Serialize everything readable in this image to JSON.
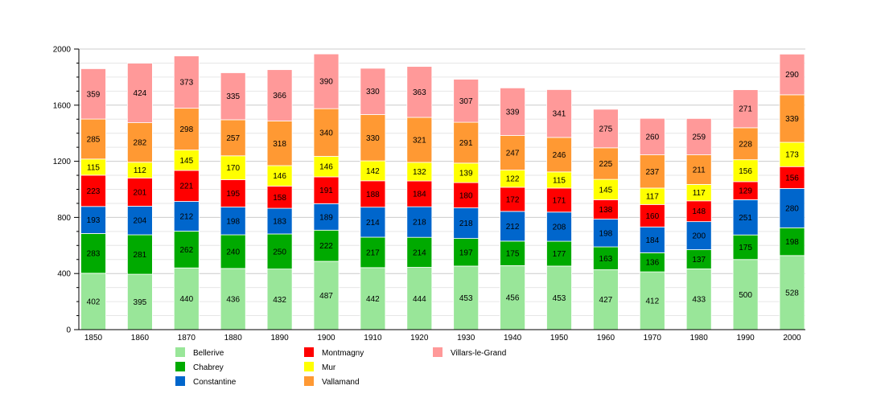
{
  "chart_data": {
    "type": "bar",
    "stacked": true,
    "title": "",
    "xlabel": "",
    "ylabel": "",
    "ylim": [
      0,
      2000
    ],
    "yticks": [
      0,
      400,
      800,
      1200,
      1600,
      2000
    ],
    "grid": true,
    "legend_position": "bottom",
    "categories": [
      "1850",
      "1860",
      "1870",
      "1880",
      "1890",
      "1900",
      "1910",
      "1920",
      "1930",
      "1940",
      "1950",
      "1960",
      "1970",
      "1980",
      "1990",
      "2000"
    ],
    "series": [
      {
        "name": "Bellerive",
        "color": "#99e699",
        "values": [
          402,
          395,
          440,
          436,
          432,
          487,
          442,
          444,
          453,
          456,
          453,
          427,
          412,
          433,
          500,
          528
        ]
      },
      {
        "name": "Chabrey",
        "color": "#00aa00",
        "values": [
          283,
          281,
          262,
          240,
          250,
          222,
          217,
          214,
          197,
          175,
          177,
          163,
          136,
          137,
          175,
          198
        ]
      },
      {
        "name": "Constantine",
        "color": "#0066cc",
        "values": [
          193,
          204,
          212,
          198,
          183,
          189,
          214,
          218,
          218,
          212,
          208,
          198,
          184,
          200,
          251,
          280
        ]
      },
      {
        "name": "Montmagny",
        "color": "#ff0000",
        "values": [
          223,
          201,
          221,
          195,
          158,
          191,
          188,
          184,
          180,
          172,
          171,
          138,
          160,
          148,
          129,
          156
        ]
      },
      {
        "name": "Mur",
        "color": "#ffff00",
        "values": [
          115,
          112,
          145,
          170,
          146,
          146,
          142,
          132,
          139,
          122,
          115,
          145,
          117,
          117,
          156,
          173
        ]
      },
      {
        "name": "Vallamand",
        "color": "#ff9933",
        "values": [
          285,
          282,
          298,
          257,
          318,
          340,
          330,
          321,
          291,
          247,
          246,
          225,
          237,
          211,
          228,
          339
        ]
      },
      {
        "name": "Villars-le-Grand",
        "color": "#ff9999",
        "values": [
          359,
          424,
          373,
          335,
          366,
          390,
          330,
          363,
          307,
          339,
          341,
          275,
          260,
          259,
          271,
          290
        ]
      }
    ]
  }
}
